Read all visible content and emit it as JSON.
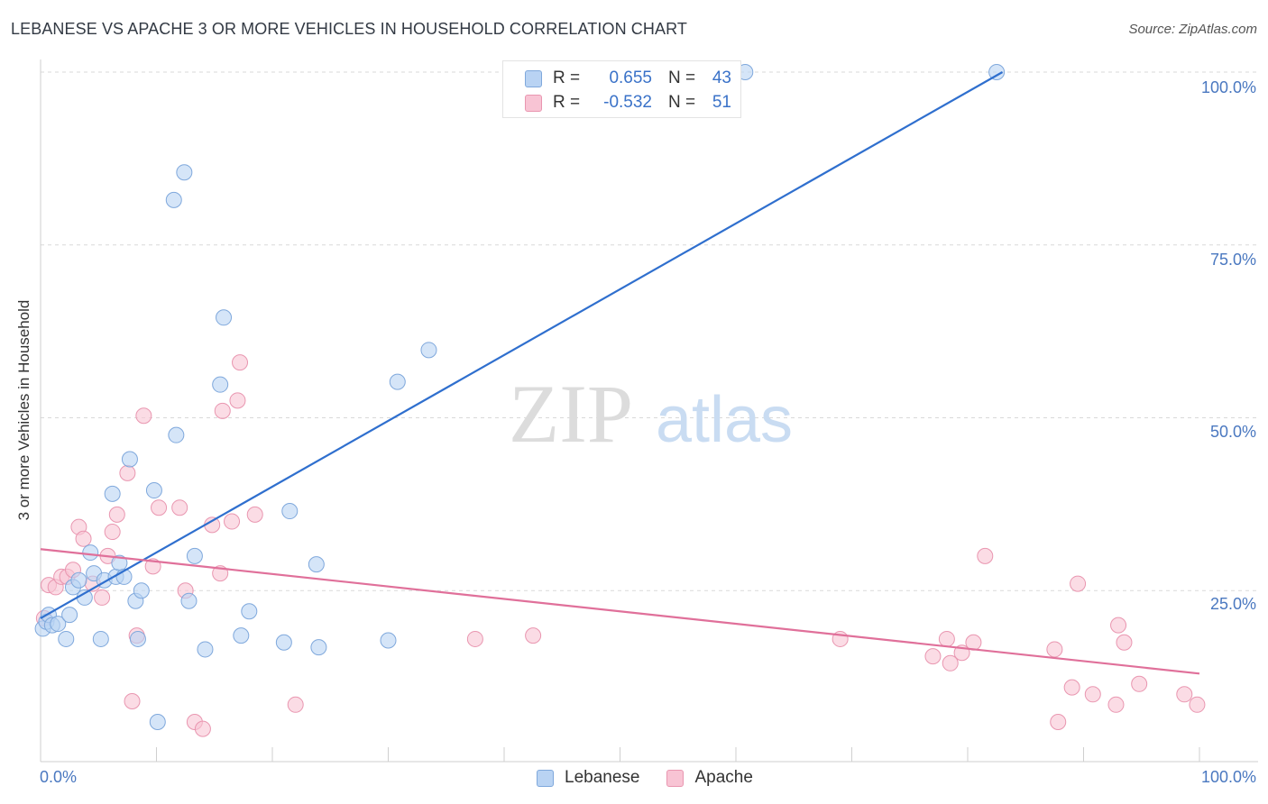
{
  "title": "LEBANESE VS APACHE 3 OR MORE VEHICLES IN HOUSEHOLD CORRELATION CHART",
  "source": "Source: ZipAtlas.com",
  "watermark": {
    "zip": "ZIP",
    "atlas": "atlas"
  },
  "legend": {
    "series": [
      {
        "r_label": "R =",
        "r_value": "0.655",
        "n_label": "N =",
        "n_value": "43"
      },
      {
        "r_label": "R =",
        "r_value": "-0.532",
        "n_label": "N =",
        "n_value": "51"
      }
    ]
  },
  "colors": {
    "blue_fill": "#b9d3f3",
    "blue_stroke": "#7fa8dc",
    "blue_line": "#2f6fce",
    "pink_fill": "#f8c4d4",
    "pink_stroke": "#e996b0",
    "pink_line": "#e0709a",
    "grid": "#d9d9d9",
    "axis_text": "#4a78c0"
  },
  "chart_data": {
    "type": "scatter",
    "title": "LEBANESE VS APACHE 3 OR MORE VEHICLES IN HOUSEHOLD CORRELATION CHART",
    "xlabel": "",
    "ylabel": "3 or more Vehicles in Household",
    "xlim": [
      0,
      100
    ],
    "ylim": [
      0,
      100
    ],
    "x_tick_labels": [
      "0.0%",
      "100.0%"
    ],
    "y_ticks": [
      25,
      50,
      75,
      100
    ],
    "y_tick_labels": [
      "25.0%",
      "50.0%",
      "75.0%",
      "100.0%"
    ],
    "grid": true,
    "legend_position": "top-center",
    "series": [
      {
        "name": "Lebanese",
        "r": 0.655,
        "n": 43,
        "trendline": [
          [
            0,
            21
          ],
          [
            83,
            100
          ]
        ],
        "points": [
          [
            0.2,
            19.5
          ],
          [
            0.5,
            20.5
          ],
          [
            0.7,
            21.5
          ],
          [
            1.0,
            20.0
          ],
          [
            1.5,
            20.2
          ],
          [
            2.2,
            18.0
          ],
          [
            2.5,
            21.5
          ],
          [
            2.8,
            25.5
          ],
          [
            3.3,
            26.5
          ],
          [
            3.8,
            24.0
          ],
          [
            4.3,
            30.5
          ],
          [
            4.6,
            27.5
          ],
          [
            5.2,
            18.0
          ],
          [
            5.5,
            26.5
          ],
          [
            6.2,
            39.0
          ],
          [
            6.5,
            27.0
          ],
          [
            6.8,
            29.0
          ],
          [
            7.2,
            27.0
          ],
          [
            7.7,
            44.0
          ],
          [
            8.2,
            23.5
          ],
          [
            8.4,
            18.0
          ],
          [
            8.7,
            25.0
          ],
          [
            9.8,
            39.5
          ],
          [
            10.1,
            6.0
          ],
          [
            11.5,
            81.5
          ],
          [
            11.7,
            47.5
          ],
          [
            12.4,
            85.5
          ],
          [
            12.8,
            23.5
          ],
          [
            13.3,
            30.0
          ],
          [
            14.2,
            16.5
          ],
          [
            15.5,
            54.8
          ],
          [
            15.8,
            64.5
          ],
          [
            17.3,
            18.5
          ],
          [
            18.0,
            22.0
          ],
          [
            21.0,
            17.5
          ],
          [
            21.5,
            36.5
          ],
          [
            23.8,
            28.8
          ],
          [
            24.0,
            16.8
          ],
          [
            30.0,
            17.8
          ],
          [
            30.8,
            55.2
          ],
          [
            33.5,
            59.8
          ],
          [
            60.8,
            100.0
          ],
          [
            82.5,
            100.0
          ]
        ]
      },
      {
        "name": "Apache",
        "r": -0.532,
        "n": 51,
        "trendline": [
          [
            0,
            31
          ],
          [
            100,
            13
          ]
        ],
        "points": [
          [
            0.3,
            21.0
          ],
          [
            0.7,
            25.8
          ],
          [
            1.3,
            25.5
          ],
          [
            1.8,
            27.0
          ],
          [
            2.3,
            27.0
          ],
          [
            2.8,
            28.0
          ],
          [
            3.3,
            34.2
          ],
          [
            3.7,
            32.5
          ],
          [
            4.5,
            26.0
          ],
          [
            5.3,
            24.0
          ],
          [
            5.8,
            30.0
          ],
          [
            6.2,
            33.5
          ],
          [
            6.6,
            36.0
          ],
          [
            7.5,
            42.0
          ],
          [
            7.9,
            9.0
          ],
          [
            8.3,
            18.5
          ],
          [
            8.9,
            50.3
          ],
          [
            9.7,
            28.5
          ],
          [
            10.2,
            37.0
          ],
          [
            12.0,
            37.0
          ],
          [
            12.5,
            25.0
          ],
          [
            13.3,
            6.0
          ],
          [
            14.0,
            5.0
          ],
          [
            14.8,
            34.5
          ],
          [
            15.5,
            27.5
          ],
          [
            15.7,
            51.0
          ],
          [
            16.5,
            35.0
          ],
          [
            17.0,
            52.5
          ],
          [
            17.2,
            58.0
          ],
          [
            18.5,
            36.0
          ],
          [
            22.0,
            8.5
          ],
          [
            37.5,
            18.0
          ],
          [
            42.5,
            18.5
          ],
          [
            69.0,
            18.0
          ],
          [
            77.0,
            15.5
          ],
          [
            78.2,
            18.0
          ],
          [
            78.5,
            14.5
          ],
          [
            79.5,
            16.0
          ],
          [
            80.5,
            17.5
          ],
          [
            81.5,
            30.0
          ],
          [
            87.5,
            16.5
          ],
          [
            87.8,
            6.0
          ],
          [
            89.0,
            11.0
          ],
          [
            89.5,
            26.0
          ],
          [
            90.8,
            10.0
          ],
          [
            92.8,
            8.5
          ],
          [
            93.0,
            20.0
          ],
          [
            93.5,
            17.5
          ],
          [
            94.8,
            11.5
          ],
          [
            98.7,
            10.0
          ],
          [
            99.8,
            8.5
          ]
        ]
      }
    ]
  }
}
